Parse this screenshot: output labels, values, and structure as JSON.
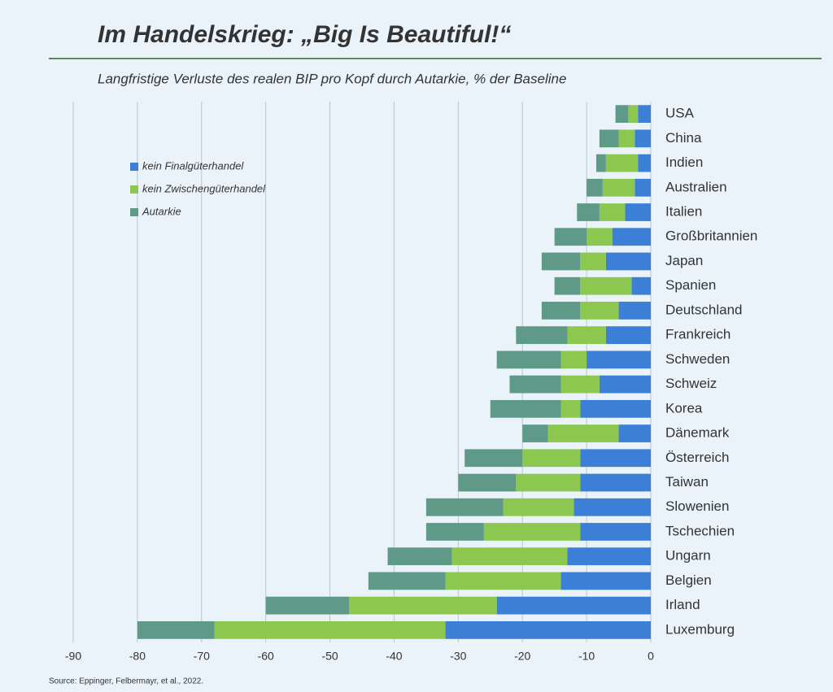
{
  "chart_data": {
    "type": "stacked-barh",
    "title": "Im Handelskrieg: „Big Is Beautiful!“",
    "subtitle": "Langfristige Verluste des realen BIP pro Kopf durch Autarkie, % der Baseline",
    "source": "Source: Eppinger, Felbermayr, et al., 2022.",
    "categories": [
      "USA",
      "China",
      "Indien",
      "Australien",
      "Italien",
      "Großbritannien",
      "Japan",
      "Spanien",
      "Deutschland",
      "Frankreich",
      "Schweden",
      "Schweiz",
      "Korea",
      "Dänemark",
      "Österreich",
      "Taiwan",
      "Slowenien",
      "Tschechien",
      "Ungarn",
      "Belgien",
      "Irland",
      "Luxemburg"
    ],
    "series": [
      {
        "name": "kein Finalgüterhandel",
        "color": "#3b7fd6",
        "values": [
          -2,
          -2.5,
          -2,
          -2.5,
          -4,
          -6,
          -7,
          -3,
          -5,
          -7,
          -10,
          -8,
          -11,
          -5,
          -11,
          -11,
          -12,
          -11,
          -13,
          -14,
          -24,
          -32
        ]
      },
      {
        "name": "kein Zwischengüterhandel",
        "color": "#8cc84f",
        "values": [
          -1.5,
          -2.5,
          -5,
          -5,
          -4,
          -4,
          -4,
          -8,
          -6,
          -6,
          -4,
          -6,
          -3,
          -11,
          -9,
          -10,
          -11,
          -15,
          -18,
          -18,
          -23,
          -36
        ]
      },
      {
        "name": "Autarkie",
        "color": "#5f9a88",
        "values": [
          -2,
          -3,
          -1.5,
          -2.5,
          -3.5,
          -5,
          -6,
          -4,
          -6,
          -8,
          -10,
          -8,
          -11,
          -4,
          -9,
          -9,
          -12,
          -9,
          -10,
          -12,
          -13,
          -12
        ]
      }
    ],
    "xlim": [
      -90,
      0
    ],
    "xticks": [
      -90,
      -80,
      -70,
      -60,
      -50,
      -40,
      -30,
      -20,
      -10,
      0
    ],
    "grid": true,
    "legend": "upper left"
  }
}
